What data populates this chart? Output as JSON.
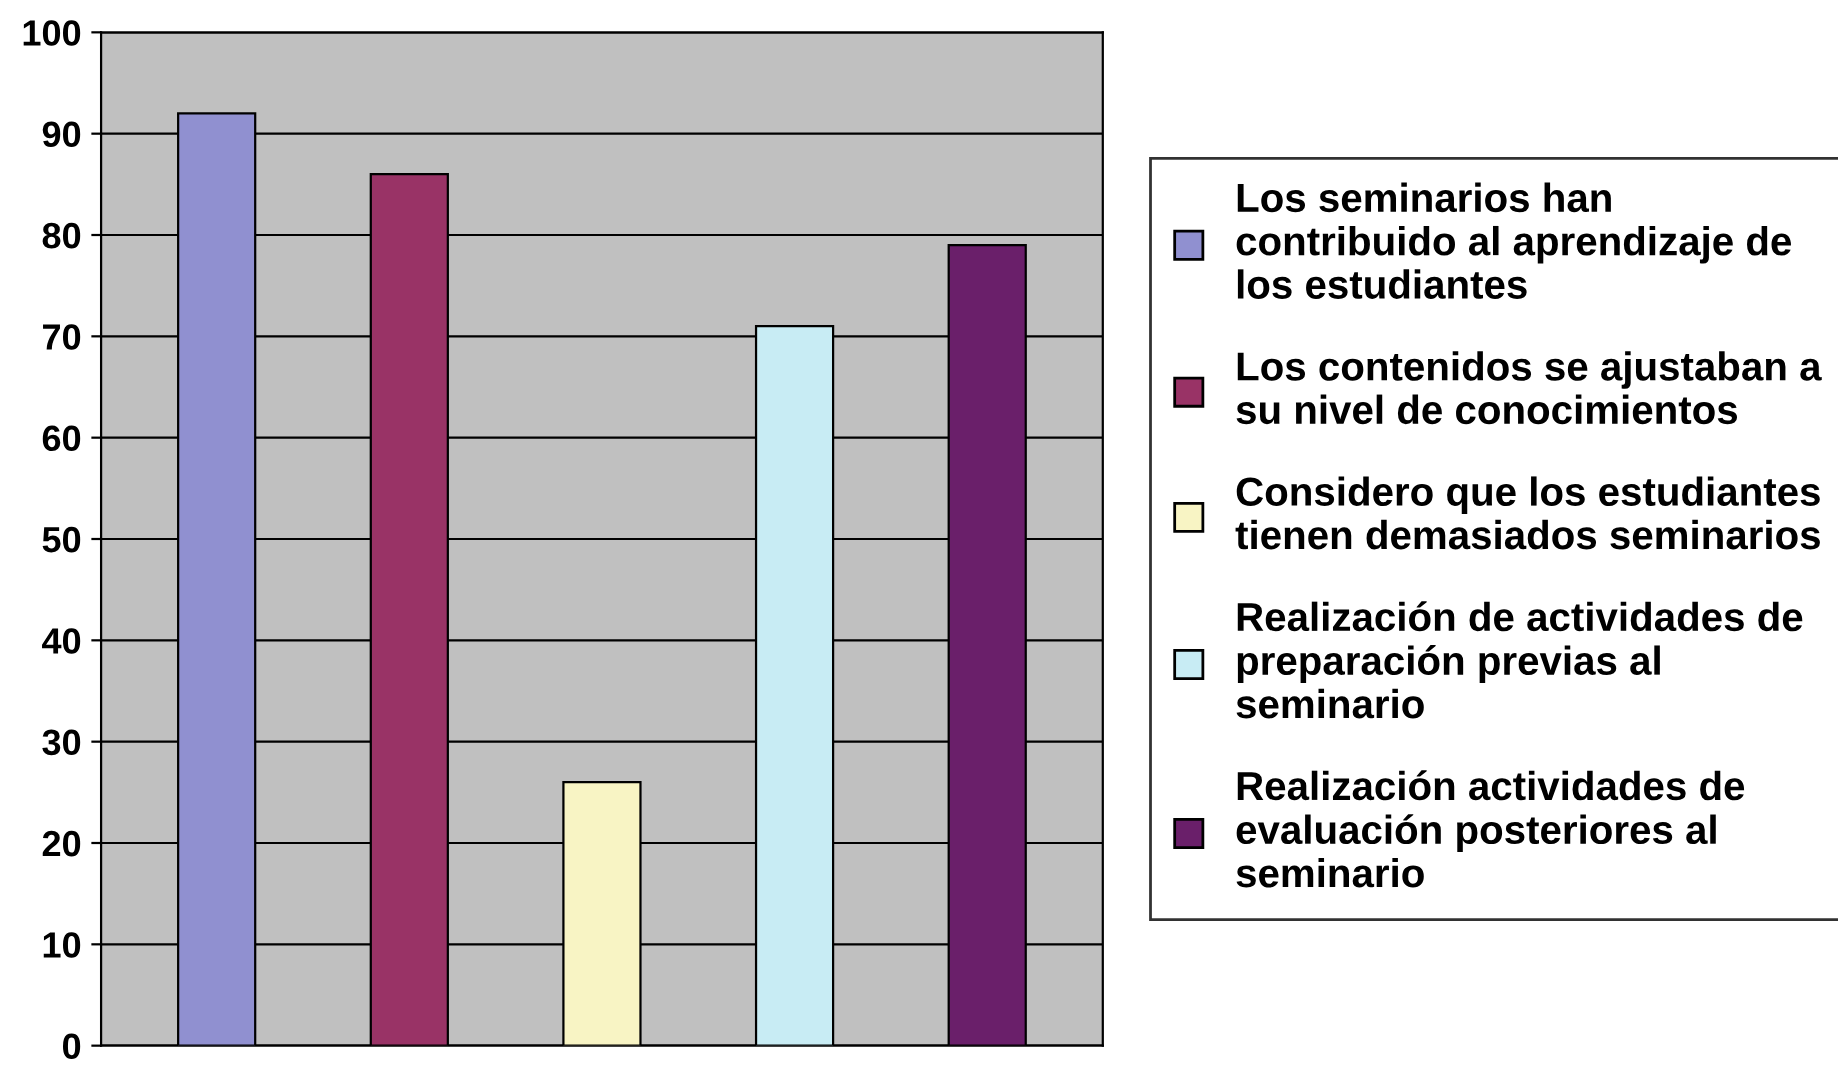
{
  "chart_data": {
    "type": "bar",
    "categories": [
      null,
      null,
      null,
      null,
      null
    ],
    "series": [
      {
        "name": "Los seminarios han contribuido al aprendizaje de los estudiantes",
        "color": "#9090d0",
        "values": [
          92,
          null,
          null,
          null,
          null
        ]
      },
      {
        "name": "Los contenidos se ajustaban a su nivel de conocimientos",
        "color": "#993366",
        "values": [
          null,
          86,
          null,
          null,
          null
        ]
      },
      {
        "name": "Considero que los estudiantes tienen demasiados seminarios",
        "color": "#f8f4c4",
        "values": [
          null,
          null,
          26,
          null,
          null
        ]
      },
      {
        "name": "Realización de actividades de preparación previas al seminario",
        "color": "#c8ecf4",
        "values": [
          null,
          null,
          null,
          71,
          null
        ]
      },
      {
        "name": "Realización actividades de evaluación posteriores al seminario",
        "color": "#6a1f6a",
        "values": [
          null,
          null,
          null,
          null,
          79
        ]
      }
    ],
    "ylim": [
      0,
      100
    ],
    "yticks": [
      0,
      10,
      20,
      30,
      40,
      50,
      60,
      70,
      80,
      90,
      100
    ],
    "grid": "y",
    "legend": "right"
  }
}
